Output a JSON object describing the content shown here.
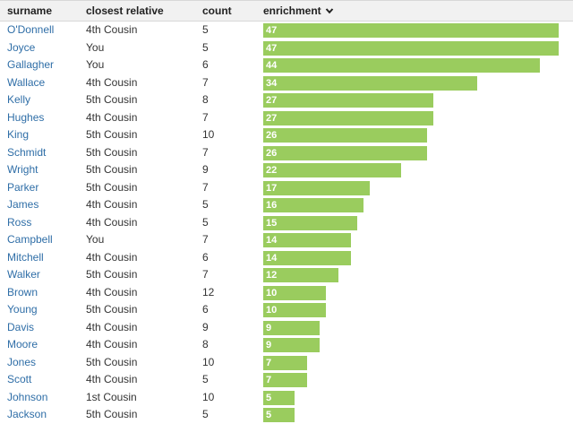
{
  "header": {
    "surname": "surname",
    "closest_relative": "closest relative",
    "count": "count",
    "enrichment": "enrichment",
    "sort_icon": "chevron-down-icon"
  },
  "colors": {
    "bar": "#9acc5e",
    "link": "#2f6ea7",
    "header_bg": "#f1f1f1"
  },
  "max_enrichment": 47,
  "rows": [
    {
      "surname": "O'Donnell",
      "relative": "4th Cousin",
      "count": "5",
      "enrichment": 47
    },
    {
      "surname": "Joyce",
      "relative": "You",
      "count": "5",
      "enrichment": 47
    },
    {
      "surname": "Gallagher",
      "relative": "You",
      "count": "6",
      "enrichment": 44
    },
    {
      "surname": "Wallace",
      "relative": "4th Cousin",
      "count": "7",
      "enrichment": 34
    },
    {
      "surname": "Kelly",
      "relative": "5th Cousin",
      "count": "8",
      "enrichment": 27
    },
    {
      "surname": "Hughes",
      "relative": "4th Cousin",
      "count": "7",
      "enrichment": 27
    },
    {
      "surname": "King",
      "relative": "5th Cousin",
      "count": "10",
      "enrichment": 26
    },
    {
      "surname": "Schmidt",
      "relative": "5th Cousin",
      "count": "7",
      "enrichment": 26
    },
    {
      "surname": "Wright",
      "relative": "5th Cousin",
      "count": "9",
      "enrichment": 22
    },
    {
      "surname": "Parker",
      "relative": "5th Cousin",
      "count": "7",
      "enrichment": 17
    },
    {
      "surname": "James",
      "relative": "4th Cousin",
      "count": "5",
      "enrichment": 16
    },
    {
      "surname": "Ross",
      "relative": "4th Cousin",
      "count": "5",
      "enrichment": 15
    },
    {
      "surname": "Campbell",
      "relative": "You",
      "count": "7",
      "enrichment": 14
    },
    {
      "surname": "Mitchell",
      "relative": "4th Cousin",
      "count": "6",
      "enrichment": 14
    },
    {
      "surname": "Walker",
      "relative": "5th Cousin",
      "count": "7",
      "enrichment": 12
    },
    {
      "surname": "Brown",
      "relative": "4th Cousin",
      "count": "12",
      "enrichment": 10
    },
    {
      "surname": "Young",
      "relative": "5th Cousin",
      "count": "6",
      "enrichment": 10
    },
    {
      "surname": "Davis",
      "relative": "4th Cousin",
      "count": "9",
      "enrichment": 9
    },
    {
      "surname": "Moore",
      "relative": "4th Cousin",
      "count": "8",
      "enrichment": 9
    },
    {
      "surname": "Jones",
      "relative": "5th Cousin",
      "count": "10",
      "enrichment": 7
    },
    {
      "surname": "Scott",
      "relative": "4th Cousin",
      "count": "5",
      "enrichment": 7
    },
    {
      "surname": "Johnson",
      "relative": "1st Cousin",
      "count": "10",
      "enrichment": 5
    },
    {
      "surname": "Jackson",
      "relative": "5th Cousin",
      "count": "5",
      "enrichment": 5
    }
  ]
}
